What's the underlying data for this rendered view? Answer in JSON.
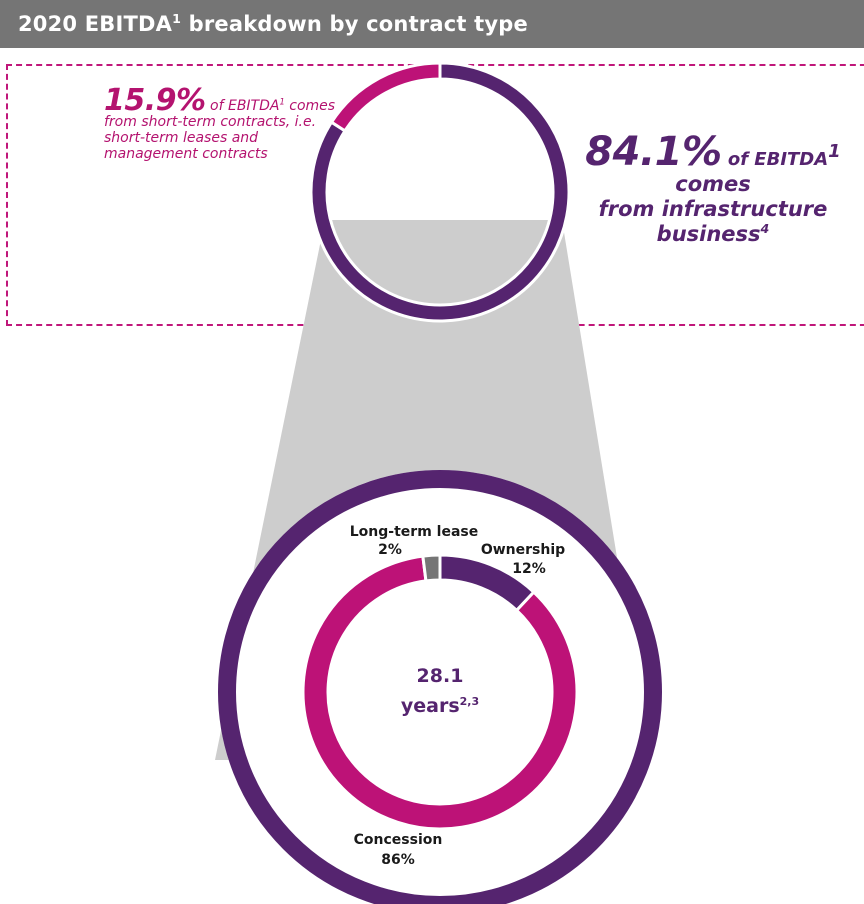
{
  "header": {
    "title_prefix": "2020 EBITDA",
    "title_sup": "1",
    "title_suffix": " breakdown by contract type"
  },
  "top_note_left": {
    "pct": "15.9%",
    "text_a": " of EBITDA",
    "sup": "1",
    "text_b": " comes from short-term contracts, i.e. short-term leases and management contracts"
  },
  "top_note_right": {
    "pct": "84.1%",
    "text_a": " of EBITDA",
    "sup": "1",
    "line2": "comes",
    "line3": "from infrastructure",
    "line4": "business",
    "sup4": "4"
  },
  "center": {
    "value": "28.1",
    "unit": "years",
    "sup": "2,3"
  },
  "colors": {
    "purple": "#55246f",
    "magenta": "#bd1277",
    "grey": "#757575",
    "cone": "#cdcdcd"
  },
  "chart_data": [
    {
      "type": "pie",
      "title": "",
      "slices": [
        {
          "label": "",
          "value": 84.1,
          "color": "#55246f"
        },
        {
          "label": "",
          "value": 15.9,
          "color": "#bd1277"
        }
      ]
    },
    {
      "type": "pie",
      "title": "",
      "slices": [
        {
          "label": "Ownership",
          "value": 12,
          "value_label": "12%",
          "color": "#55246f"
        },
        {
          "label": "Concession",
          "value": 86,
          "value_label": "86%",
          "color": "#bd1277"
        },
        {
          "label": "Long-term lease",
          "value": 2,
          "value_label": "2%",
          "color": "#757575"
        }
      ]
    }
  ]
}
